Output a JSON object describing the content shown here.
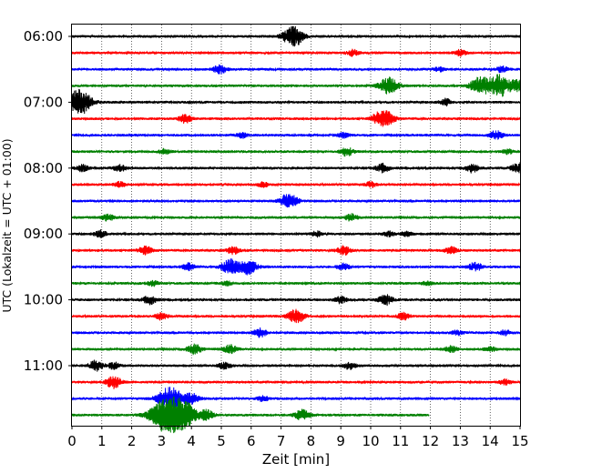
{
  "chart_data": {
    "type": "line",
    "title": "",
    "xlabel": "Zeit  [min]",
    "ylabel": "UTC (Lokalzeit = UTC + 01:00)",
    "xlim": [
      0,
      15
    ],
    "x_ticks": [
      "0",
      "1",
      "2",
      "3",
      "4",
      "5",
      "6",
      "7",
      "8",
      "9",
      "10",
      "11",
      "12",
      "13",
      "14",
      "15"
    ],
    "y_ticks": [
      "06:00",
      "07:00",
      "08:00",
      "09:00",
      "10:00",
      "11:00"
    ],
    "grid": "vertical dotted",
    "trace_interval_minutes": 15,
    "trace_colors": [
      "#000000",
      "#ff0000",
      "#0000ff",
      "#008000"
    ],
    "series": [
      {
        "start": "06:00",
        "events": [
          [
            7.35,
            1.0
          ],
          [
            7.6,
            0.5
          ]
        ]
      },
      {
        "start": "06:15",
        "events": [
          [
            9.4,
            0.35
          ],
          [
            13.0,
            0.35
          ]
        ]
      },
      {
        "start": "06:30",
        "events": [
          [
            4.95,
            0.5
          ],
          [
            12.3,
            0.25
          ],
          [
            14.4,
            0.35
          ]
        ]
      },
      {
        "start": "06:45",
        "events": [
          [
            10.6,
            1.0
          ],
          [
            13.65,
            1.0
          ],
          [
            14.3,
            1.3
          ],
          [
            14.9,
            0.6
          ]
        ]
      },
      {
        "start": "07:00",
        "events": [
          [
            0.25,
            1.5
          ],
          [
            12.5,
            0.4
          ]
        ]
      },
      {
        "start": "07:15",
        "events": [
          [
            3.8,
            0.5
          ],
          [
            10.5,
            0.9
          ],
          [
            10.2,
            0.4
          ]
        ]
      },
      {
        "start": "07:30",
        "events": [
          [
            5.7,
            0.3
          ],
          [
            9.1,
            0.3
          ],
          [
            14.2,
            0.5
          ]
        ]
      },
      {
        "start": "07:45",
        "events": [
          [
            3.1,
            0.3
          ],
          [
            9.2,
            0.5
          ],
          [
            14.6,
            0.3
          ]
        ]
      },
      {
        "start": "08:00",
        "events": [
          [
            0.35,
            0.4
          ],
          [
            1.6,
            0.4
          ],
          [
            10.4,
            0.5
          ],
          [
            13.4,
            0.5
          ],
          [
            14.95,
            0.6
          ]
        ]
      },
      {
        "start": "08:15",
        "events": [
          [
            1.6,
            0.3
          ],
          [
            6.4,
            0.3
          ],
          [
            10.0,
            0.3
          ]
        ]
      },
      {
        "start": "08:30",
        "events": [
          [
            7.25,
            0.9
          ]
        ]
      },
      {
        "start": "08:45",
        "events": [
          [
            1.2,
            0.4
          ],
          [
            9.35,
            0.4
          ]
        ]
      },
      {
        "start": "09:00",
        "events": [
          [
            0.95,
            0.4
          ],
          [
            8.2,
            0.3
          ],
          [
            10.6,
            0.3
          ],
          [
            11.2,
            0.3
          ]
        ]
      },
      {
        "start": "09:15",
        "events": [
          [
            2.45,
            0.5
          ],
          [
            5.4,
            0.4
          ],
          [
            9.1,
            0.5
          ],
          [
            12.7,
            0.4
          ]
        ]
      },
      {
        "start": "09:30",
        "events": [
          [
            3.9,
            0.4
          ],
          [
            5.3,
            0.9
          ],
          [
            5.9,
            0.9
          ],
          [
            9.1,
            0.4
          ],
          [
            13.5,
            0.5
          ]
        ]
      },
      {
        "start": "09:45",
        "events": [
          [
            2.7,
            0.3
          ],
          [
            5.2,
            0.25
          ],
          [
            11.9,
            0.25
          ]
        ]
      },
      {
        "start": "10:00",
        "events": [
          [
            2.6,
            0.5
          ],
          [
            9.0,
            0.4
          ],
          [
            10.5,
            0.6
          ]
        ]
      },
      {
        "start": "10:15",
        "events": [
          [
            3.0,
            0.4
          ],
          [
            7.5,
            0.8
          ],
          [
            11.1,
            0.4
          ]
        ]
      },
      {
        "start": "10:30",
        "events": [
          [
            6.3,
            0.5
          ],
          [
            12.9,
            0.3
          ],
          [
            14.5,
            0.3
          ]
        ]
      },
      {
        "start": "10:45",
        "events": [
          [
            4.1,
            0.6
          ],
          [
            5.3,
            0.5
          ],
          [
            12.7,
            0.4
          ],
          [
            14.0,
            0.3
          ]
        ]
      },
      {
        "start": "11:00",
        "events": [
          [
            0.8,
            0.6
          ],
          [
            1.4,
            0.4
          ],
          [
            5.1,
            0.4
          ],
          [
            9.3,
            0.4
          ]
        ]
      },
      {
        "start": "11:15",
        "events": [
          [
            1.4,
            0.7
          ],
          [
            14.5,
            0.3
          ]
        ]
      },
      {
        "start": "11:30",
        "events": [
          [
            3.3,
            1.5
          ],
          [
            4.0,
            0.6
          ],
          [
            6.4,
            0.3
          ]
        ]
      },
      {
        "start": "11:45",
        "events": [
          [
            3.2,
            2.2
          ],
          [
            3.8,
            1.2
          ],
          [
            4.5,
            0.6
          ],
          [
            7.7,
            0.6
          ]
        ],
        "end": 11.95
      }
    ]
  }
}
